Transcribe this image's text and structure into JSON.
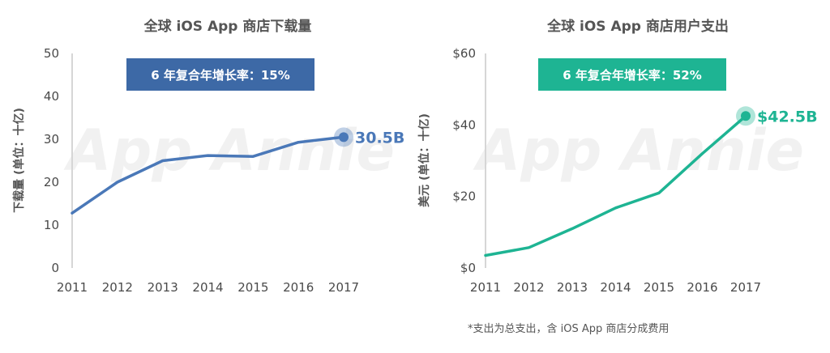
{
  "colors": {
    "left_series": "#4a78b8",
    "left_badge": "#3d69a6",
    "right_series": "#1eb493",
    "right_badge": "#1eb493",
    "axis": "#d6d6d6"
  },
  "watermark": "App Annie",
  "footnote": "*支出为总支出，含 iOS App 商店分成费用",
  "chart_data": [
    {
      "type": "line",
      "title": "全球 iOS App 商店下载量",
      "ylabel": "下载量 (单位：十亿)",
      "xlabel": "",
      "x": [
        "2011",
        "2012",
        "2013",
        "2014",
        "2015",
        "2016",
        "2017"
      ],
      "series": [
        {
          "values": [
            12.8,
            20.0,
            25.0,
            26.2,
            26.0,
            29.3,
            30.5
          ]
        }
      ],
      "ylim": [
        0,
        50
      ],
      "yticks": [
        0,
        10,
        20,
        30,
        40,
        50
      ],
      "ytick_labels": [
        "0",
        "10",
        "20",
        "30",
        "40",
        "50"
      ],
      "grid": false,
      "badge": "6 年复合年增长率：15%",
      "end_label": "30.5B"
    },
    {
      "type": "line",
      "title": "全球 iOS App 商店用户支出",
      "ylabel": "美元 (单位：十亿)",
      "xlabel": "",
      "x": [
        "2011",
        "2012",
        "2013",
        "2014",
        "2015",
        "2016",
        "2017"
      ],
      "series": [
        {
          "values": [
            3.5,
            5.7,
            11.0,
            16.8,
            21.0,
            32.0,
            42.5
          ]
        }
      ],
      "ylim": [
        0,
        60
      ],
      "yticks": [
        0,
        20,
        40,
        60
      ],
      "ytick_labels": [
        "$0",
        "$20",
        "$40",
        "$60"
      ],
      "grid": false,
      "badge": "6 年复合年增长率：52%",
      "end_label": "$42.5B"
    }
  ]
}
